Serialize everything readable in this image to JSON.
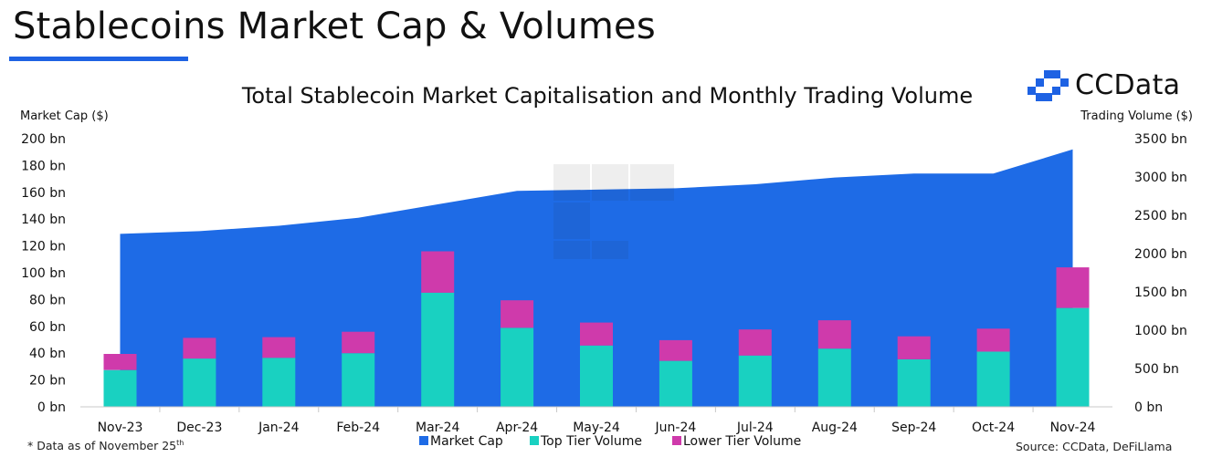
{
  "header": {
    "title": "Stablecoins Market Cap & Volumes",
    "brand": "CCData",
    "accent_color": "#1e62e3"
  },
  "footer": {
    "note_prefix": "* Data as of November 25",
    "note_suffix": "th",
    "source": "Source: CCData, DeFiLlama"
  },
  "chart_data": {
    "type": "bar",
    "title": "Total Stablecoin Market Capitalisation and Monthly Trading Volume",
    "categories": [
      "Nov-23",
      "Dec-23",
      "Jan-24",
      "Feb-24",
      "Mar-24",
      "Apr-24",
      "May-24",
      "Jun-24",
      "Jul-24",
      "Aug-24",
      "Sep-24",
      "Oct-24",
      "Nov-24"
    ],
    "y_left": {
      "label": "Market Cap ($)",
      "range": [
        0,
        200
      ],
      "ticks": [
        "0 bn",
        "20 bn",
        "40 bn",
        "60 bn",
        "80 bn",
        "100 bn",
        "120 bn",
        "140 bn",
        "160 bn",
        "180 bn",
        "200 bn"
      ]
    },
    "y_right": {
      "label": "Trading Volume ($)",
      "range": [
        0,
        3500
      ],
      "ticks": [
        "0 bn",
        "500 bn",
        "1000 bn",
        "1500 bn",
        "2000 bn",
        "2500 bn",
        "3000 bn",
        "3500 bn"
      ]
    },
    "series": [
      {
        "name": "Market Cap",
        "type": "area",
        "axis": "left",
        "color": "#1e6be6",
        "values": [
          129,
          131,
          135,
          141,
          151,
          161,
          162,
          163,
          166,
          171,
          174,
          174,
          192
        ]
      },
      {
        "name": "Top Tier Volume",
        "type": "stacked-bar",
        "axis": "right",
        "color": "#19d1c1",
        "values": [
          480,
          630,
          640,
          700,
          1490,
          1030,
          800,
          600,
          670,
          760,
          620,
          720,
          1290
        ]
      },
      {
        "name": "Lower Tier Volume",
        "type": "stacked-bar",
        "axis": "right",
        "color": "#cf3aab",
        "values": [
          210,
          270,
          270,
          280,
          540,
          360,
          300,
          270,
          340,
          370,
          300,
          300,
          530
        ]
      }
    ],
    "legend_position": "bottom-center",
    "grid": false
  }
}
